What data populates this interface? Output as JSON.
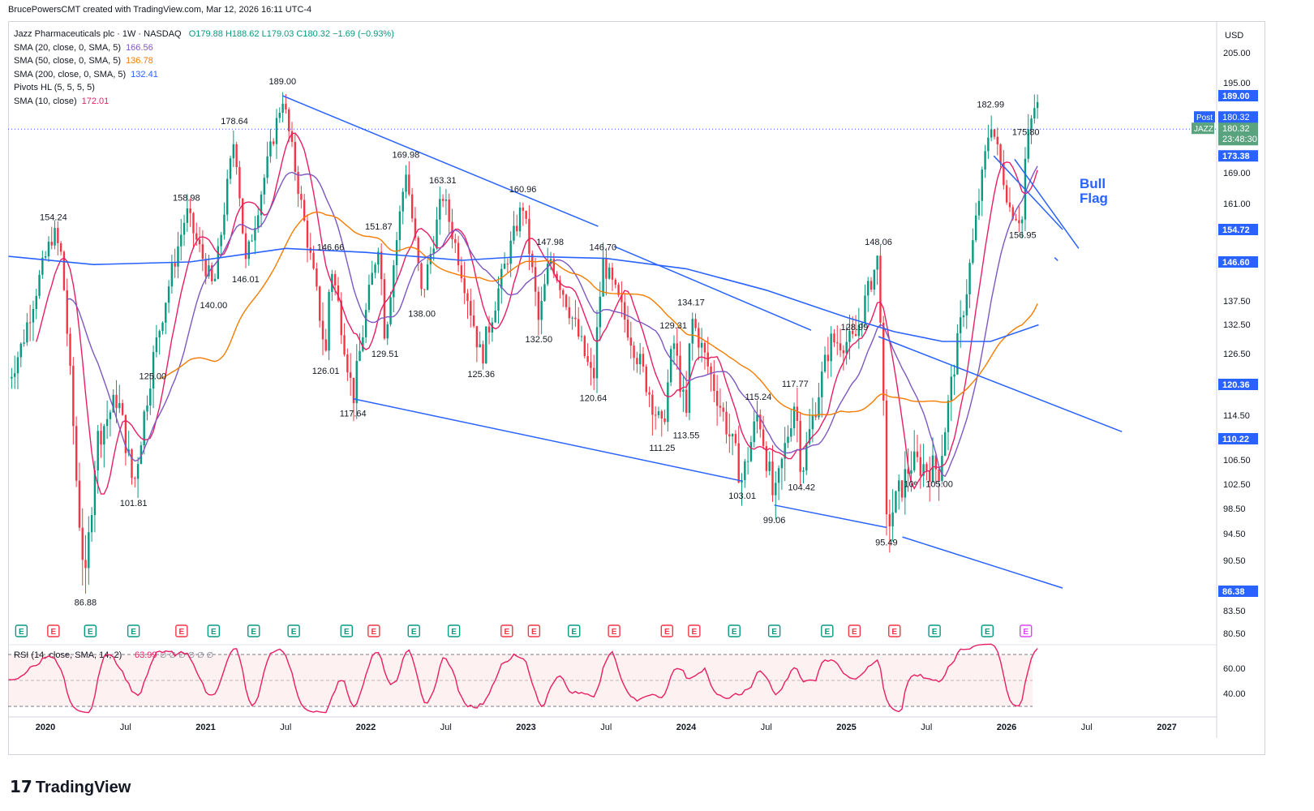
{
  "header": "BrucePowersCMT created with TradingView.com, Mar 12, 2026 16:11 UTC-4",
  "brand": "TradingView",
  "brand_logo_glyph": "17",
  "legend": {
    "symbol": "Jazz Pharmaceuticals plc · 1W · NASDAQ",
    "ohlc": "O179.88  H188.62  L179.03  C180.32  −1.69 (−0.93%)",
    "ohlc_color": "#089981",
    "indicators": [
      {
        "label": "SMA (20, close, 0, SMA, 5)",
        "value": "166.56",
        "color": "#7e57c2"
      },
      {
        "label": "SMA (50, close, 0, SMA, 5)",
        "value": "136.78",
        "color": "#f57c00"
      },
      {
        "label": "SMA (200, close, 0, SMA, 5)",
        "value": "132.41",
        "color": "#2962ff"
      },
      {
        "label": "Pivots HL (5, 5, 5, 5)",
        "value": "",
        "color": "#131722"
      },
      {
        "label": "SMA (10, close)",
        "value": "172.01",
        "color": "#e91e63"
      }
    ]
  },
  "rsi_label": "RSI (14, close, SMA, 14, 2)",
  "rsi_value": "63.99",
  "rsi_extra": "∅  ∅  ∅  ∅  ∅  ∅",
  "annotation": {
    "text1": "Bull",
    "text2": "Flag",
    "color": "#2962ff"
  },
  "earnings_icon": "E",
  "chart_data": {
    "type": "candlestick",
    "currency": "USD",
    "price_axis_ticks": [
      "205.00",
      "195.00",
      "169.00",
      "161.00",
      "137.50",
      "132.50",
      "126.50",
      "114.50",
      "106.50",
      "102.50",
      "98.50",
      "94.50",
      "90.50",
      "83.50",
      "80.50"
    ],
    "price_badges": [
      {
        "value": "189.00",
        "color": "#2962ff"
      },
      {
        "value": "182.99",
        "color": "#2962ff"
      },
      {
        "value": "180.32",
        "color": "#2962ff",
        "tag": "Post"
      },
      {
        "value": "180.32",
        "color": "#5aa37f",
        "tag": "JAZZ",
        "sub": "23:48:30"
      },
      {
        "value": "173.38",
        "color": "#2962ff"
      },
      {
        "value": "154.72",
        "color": "#2962ff"
      },
      {
        "value": "146.60",
        "color": "#2962ff"
      },
      {
        "value": "120.36",
        "color": "#2962ff"
      },
      {
        "value": "110.22",
        "color": "#2962ff"
      },
      {
        "value": "86.38",
        "color": "#2962ff"
      }
    ],
    "time_axis": [
      "2020",
      "Jul",
      "2021",
      "Jul",
      "2022",
      "Jul",
      "2023",
      "Jul",
      "2024",
      "Jul",
      "2025",
      "Jul",
      "2026",
      "Jul",
      "2027"
    ],
    "rsi_axis": [
      "60.00",
      "40.00"
    ],
    "pivot_labels": [
      {
        "t": 2020.05,
        "p": 154.24,
        "text": "154.24",
        "side": "high"
      },
      {
        "t": 2020.25,
        "p": 86.88,
        "text": "86.88",
        "side": "low"
      },
      {
        "t": 2020.55,
        "p": 101.81,
        "text": "101.81",
        "side": "low"
      },
      {
        "t": 2020.67,
        "p": 125.0,
        "text": "125.00",
        "side": "low"
      },
      {
        "t": 2020.88,
        "p": 158.98,
        "text": "158.98",
        "side": "high"
      },
      {
        "t": 2021.05,
        "p": 140.0,
        "text": "140.00",
        "side": "low"
      },
      {
        "t": 2021.18,
        "p": 178.64,
        "text": "178.64",
        "side": "high"
      },
      {
        "t": 2021.25,
        "p": 146.01,
        "text": "146.01",
        "side": "low"
      },
      {
        "t": 2021.48,
        "p": 189.0,
        "text": "189.00",
        "side": "high"
      },
      {
        "t": 2021.78,
        "p": 146.66,
        "text": "146.66",
        "side": "high"
      },
      {
        "t": 2021.75,
        "p": 126.01,
        "text": "126.01",
        "side": "low"
      },
      {
        "t": 2021.92,
        "p": 117.64,
        "text": "117.64",
        "side": "low"
      },
      {
        "t": 2022.08,
        "p": 151.87,
        "text": "151.87",
        "side": "high"
      },
      {
        "t": 2022.12,
        "p": 129.51,
        "text": "129.51",
        "side": "low"
      },
      {
        "t": 2022.25,
        "p": 169.98,
        "text": "169.98",
        "side": "high"
      },
      {
        "t": 2022.35,
        "p": 138.0,
        "text": "138.00",
        "side": "low"
      },
      {
        "t": 2022.48,
        "p": 163.31,
        "text": "163.31",
        "side": "high"
      },
      {
        "t": 2022.72,
        "p": 125.36,
        "text": "125.36",
        "side": "low"
      },
      {
        "t": 2022.98,
        "p": 160.96,
        "text": "160.96",
        "side": "high"
      },
      {
        "t": 2023.15,
        "p": 147.98,
        "text": "147.98",
        "side": "high"
      },
      {
        "t": 2023.08,
        "p": 132.5,
        "text": "132.50",
        "side": "low"
      },
      {
        "t": 2023.48,
        "p": 146.7,
        "text": "146.70",
        "side": "high"
      },
      {
        "t": 2023.42,
        "p": 120.64,
        "text": "120.64",
        "side": "low"
      },
      {
        "t": 2023.92,
        "p": 129.31,
        "text": "129.31",
        "side": "high"
      },
      {
        "t": 2023.85,
        "p": 111.25,
        "text": "111.25",
        "side": "low"
      },
      {
        "t": 2024.03,
        "p": 134.17,
        "text": "134.17",
        "side": "high"
      },
      {
        "t": 2024.0,
        "p": 113.55,
        "text": "113.55",
        "side": "low"
      },
      {
        "t": 2024.45,
        "p": 115.24,
        "text": "115.24",
        "side": "high"
      },
      {
        "t": 2024.35,
        "p": 103.01,
        "text": "103.01",
        "side": "low"
      },
      {
        "t": 2024.55,
        "p": 99.06,
        "text": "99.06",
        "side": "low"
      },
      {
        "t": 2024.68,
        "p": 117.77,
        "text": "117.77",
        "side": "high"
      },
      {
        "t": 2024.72,
        "p": 104.42,
        "text": "104.42",
        "side": "low"
      },
      {
        "t": 2025.05,
        "p": 128.99,
        "text": "128.99",
        "side": "high"
      },
      {
        "t": 2025.2,
        "p": 148.06,
        "text": "148.06",
        "side": "high"
      },
      {
        "t": 2025.25,
        "p": 95.49,
        "text": "95.49",
        "side": "low"
      },
      {
        "t": 2025.4,
        "p": 105.0,
        "text": "10ᵉ",
        "side": "low"
      },
      {
        "t": 2025.58,
        "p": 105.0,
        "text": "105.00",
        "side": "low"
      },
      {
        "t": 2025.9,
        "p": 182.99,
        "text": "182.99",
        "side": "high"
      },
      {
        "t": 2026.12,
        "p": 175.8,
        "text": "175.80",
        "side": "high"
      },
      {
        "t": 2026.1,
        "p": 156.95,
        "text": "156.95",
        "side": "low"
      }
    ],
    "earnings": [
      {
        "t": 2019.55,
        "type": "E",
        "color": "#089981"
      },
      {
        "t": 2019.85,
        "type": "E",
        "color": "#089981"
      },
      {
        "t": 2020.05,
        "type": "E",
        "color": "#f23645"
      },
      {
        "t": 2020.28,
        "type": "E",
        "color": "#089981"
      },
      {
        "t": 2020.55,
        "type": "E",
        "color": "#089981"
      },
      {
        "t": 2020.85,
        "type": "E",
        "color": "#f23645"
      },
      {
        "t": 2021.05,
        "type": "E",
        "color": "#089981"
      },
      {
        "t": 2021.3,
        "type": "E",
        "color": "#089981"
      },
      {
        "t": 2021.55,
        "type": "E",
        "color": "#089981"
      },
      {
        "t": 2021.88,
        "type": "E",
        "color": "#089981"
      },
      {
        "t": 2022.05,
        "type": "E",
        "color": "#f23645"
      },
      {
        "t": 2022.3,
        "type": "E",
        "color": "#089981"
      },
      {
        "t": 2022.55,
        "type": "E",
        "color": "#089981"
      },
      {
        "t": 2022.88,
        "type": "E",
        "color": "#f23645"
      },
      {
        "t": 2023.05,
        "type": "E",
        "color": "#f23645"
      },
      {
        "t": 2023.3,
        "type": "E",
        "color": "#089981"
      },
      {
        "t": 2023.55,
        "type": "E",
        "color": "#f23645"
      },
      {
        "t": 2023.88,
        "type": "E",
        "color": "#f23645"
      },
      {
        "t": 2024.05,
        "type": "E",
        "color": "#f23645"
      },
      {
        "t": 2024.3,
        "type": "E",
        "color": "#089981"
      },
      {
        "t": 2024.55,
        "type": "E",
        "color": "#089981"
      },
      {
        "t": 2024.88,
        "type": "E",
        "color": "#089981"
      },
      {
        "t": 2025.05,
        "type": "E",
        "color": "#f23645"
      },
      {
        "t": 2025.3,
        "type": "E",
        "color": "#f23645"
      },
      {
        "t": 2025.55,
        "type": "E",
        "color": "#089981"
      },
      {
        "t": 2025.88,
        "type": "E",
        "color": "#089981"
      },
      {
        "t": 2026.12,
        "type": "E",
        "color": "#e040fb"
      }
    ]
  }
}
